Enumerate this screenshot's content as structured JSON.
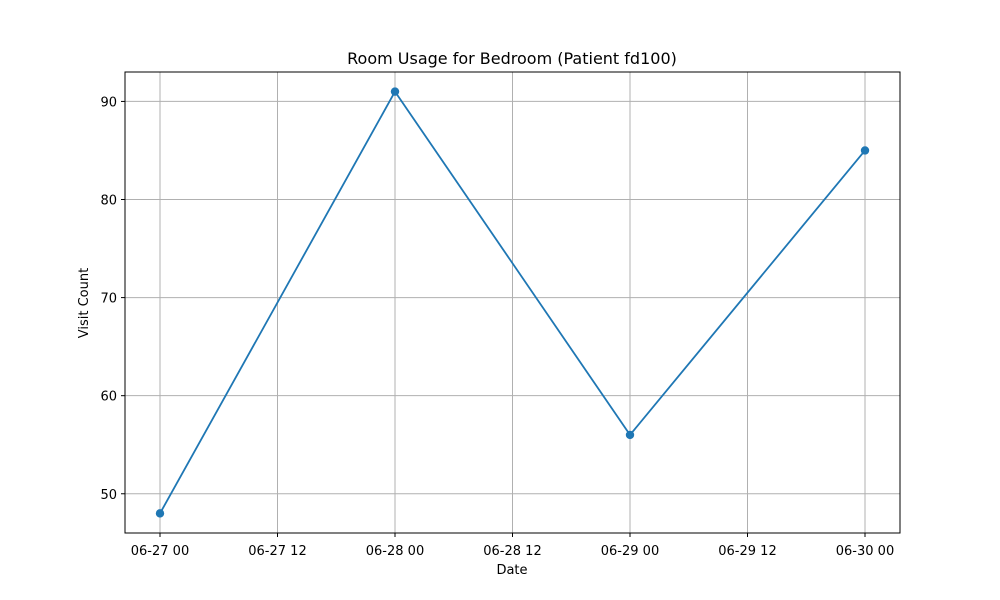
{
  "chart_data": {
    "type": "line",
    "title": "Room Usage for Bedroom (Patient fd100)",
    "xlabel": "Date",
    "ylabel": "Visit Count",
    "x_tick_labels": [
      "06-27 00",
      "06-27 12",
      "06-28 00",
      "06-28 12",
      "06-29 00",
      "06-29 12",
      "06-30 00"
    ],
    "y_ticks": [
      50,
      60,
      70,
      80,
      90
    ],
    "ylim": [
      46,
      93
    ],
    "grid": true,
    "series": [
      {
        "color": "#1f77b4",
        "marker": "circle",
        "points": [
          {
            "x": "06-27 00",
            "y": 48
          },
          {
            "x": "06-28 00",
            "y": 91
          },
          {
            "x": "06-29 00",
            "y": 56
          },
          {
            "x": "06-30 00",
            "y": 85
          }
        ]
      }
    ]
  }
}
